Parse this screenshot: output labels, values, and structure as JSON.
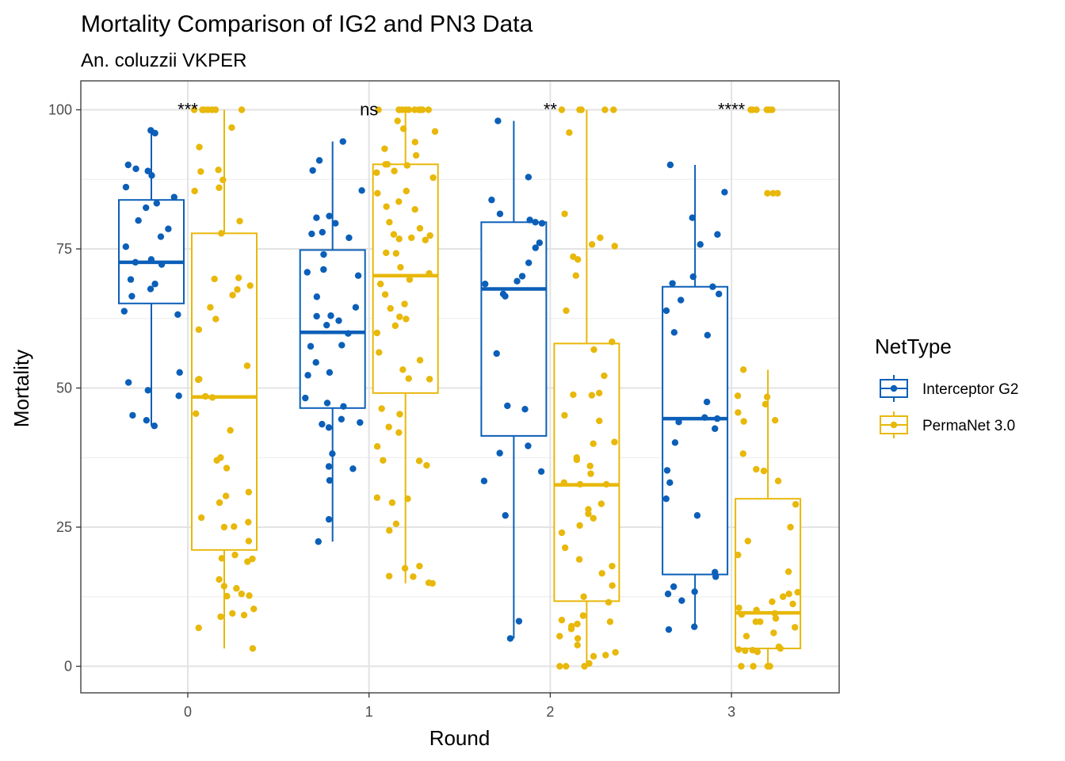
{
  "chart_data": {
    "type": "boxplot",
    "title": "Mortality Comparison of IG2 and PN3 Data",
    "subtitle": "An. coluzzii VKPER",
    "xlabel": "Round",
    "ylabel": "Mortality",
    "categories": [
      "0",
      "1",
      "2",
      "3"
    ],
    "y_ticks": [
      "0",
      "25",
      "50",
      "75",
      "100"
    ],
    "ylim": [
      -5,
      105
    ],
    "grid": true,
    "legend": {
      "title": "NetType",
      "position": "right"
    },
    "annotations": [
      "***",
      "ns",
      "**",
      "****"
    ],
    "series": [
      {
        "name": "Interceptor G2",
        "color": "#0B5FB8",
        "boxes": [
          {
            "min": 43.2,
            "q1": 65.2,
            "median": 72.6,
            "q3": 83.8,
            "max": 96.3
          },
          {
            "min": 22.4,
            "q1": 46.4,
            "median": 60.0,
            "q3": 74.8,
            "max": 94.3
          },
          {
            "min": 5.0,
            "q1": 41.4,
            "median": 67.8,
            "q3": 79.8,
            "max": 98.0
          },
          {
            "min": 6.6,
            "q1": 16.5,
            "median": 44.5,
            "q3": 68.2,
            "max": 90.1
          }
        ],
        "points": [
          [
            96.3,
            95.8,
            90.1,
            89.4,
            89.0,
            88.2,
            86.1,
            84.3,
            83.2,
            82.4,
            80.1,
            78.6,
            77.2,
            75.4,
            73.1,
            72.6,
            72.2,
            69.5,
            68.7,
            67.8,
            66.5,
            63.8,
            63.2,
            52.8,
            51.0,
            49.6,
            48.6,
            45.1,
            44.2,
            43.2
          ],
          [
            94.3,
            90.9,
            89.1,
            85.5,
            80.9,
            80.6,
            79.6,
            78.0,
            77.7,
            77.0,
            74.0,
            71.3,
            70.8,
            70.2,
            66.4,
            64.5,
            63.0,
            62.9,
            62.1,
            61.3,
            59.8,
            57.7,
            57.5,
            54.6,
            52.8,
            52.3,
            48.2,
            47.3,
            46.7,
            44.4,
            43.8,
            43.5,
            42.9,
            38.2,
            35.9,
            35.5,
            33.4,
            26.4,
            22.4
          ],
          [
            98.0,
            87.9,
            83.8,
            81.3,
            80.2,
            79.8,
            79.6,
            76.1,
            75.2,
            72.5,
            70.1,
            69.2,
            68.7,
            66.9,
            66.5,
            56.2,
            46.8,
            46.2,
            39.6,
            38.3,
            35.0,
            33.3,
            27.1,
            8.1,
            5.0
          ],
          [
            90.1,
            85.2,
            80.6,
            77.6,
            75.8,
            70.0,
            68.8,
            68.2,
            66.9,
            65.8,
            63.9,
            60.0,
            59.5,
            47.5,
            44.7,
            44.5,
            43.9,
            42.7,
            40.2,
            35.2,
            33.0,
            30.1,
            27.1,
            16.9,
            16.1,
            14.3,
            13.4,
            13.0,
            11.8,
            7.1,
            6.6
          ]
        ]
      },
      {
        "name": "PermaNet 3.0",
        "color": "#E8B80A",
        "boxes": [
          {
            "min": 3.2,
            "q1": 20.9,
            "median": 48.4,
            "q3": 77.8,
            "max": 100
          },
          {
            "min": 14.9,
            "q1": 49.1,
            "median": 70.2,
            "q3": 90.2,
            "max": 100
          },
          {
            "min": 0,
            "q1": 11.7,
            "median": 32.6,
            "q3": 58.0,
            "max": 100
          },
          {
            "min": 0,
            "q1": 3.2,
            "median": 9.6,
            "q3": 30.1,
            "max": 53.3
          }
        ],
        "points": [
          [
            100,
            100,
            100,
            100,
            100,
            100,
            100,
            96.8,
            93.3,
            89.2,
            88.9,
            87.4,
            86.0,
            85.4,
            80.0,
            77.8,
            69.8,
            69.6,
            68.4,
            67.7,
            66.7,
            64.5,
            62.4,
            60.5,
            54.0,
            51.6,
            51.5,
            48.5,
            48.3,
            45.4,
            42.4,
            37.5,
            37.0,
            35.6,
            31.3,
            30.6,
            29.4,
            26.7,
            25.9,
            25.1,
            25.0,
            22.5,
            20.0,
            19.4,
            19.3,
            18.8,
            15.6,
            14.4,
            14.0,
            13.0,
            12.7,
            12.6,
            10.3,
            9.5,
            9.2,
            8.9,
            6.9,
            3.2
          ],
          [
            100,
            100,
            100,
            100,
            100,
            100,
            100,
            100,
            100,
            100,
            98.0,
            96.6,
            96.1,
            94.2,
            93.0,
            91.8,
            90.2,
            90.2,
            90.0,
            89.0,
            88.7,
            87.8,
            85.4,
            85.0,
            83.5,
            82.6,
            82.1,
            79.8,
            78.7,
            77.6,
            77.4,
            77.0,
            76.8,
            76.6,
            74.3,
            74.2,
            71.7,
            70.6,
            69.5,
            68.7,
            66.8,
            65.1,
            64.3,
            62.8,
            62.4,
            61.2,
            59.9,
            56.4,
            55.0,
            53.3,
            51.7,
            51.6,
            46.3,
            45.3,
            43.0,
            42.0,
            39.5,
            37.0,
            36.9,
            36.1,
            30.3,
            30.1,
            29.4,
            25.6,
            24.4,
            18.0,
            17.6,
            16.2,
            16.1,
            15.0,
            14.9
          ],
          [
            100,
            100,
            100,
            100,
            100,
            95.9,
            81.3,
            77.0,
            75.8,
            75.5,
            73.6,
            73.1,
            70.2,
            63.9,
            58.3,
            56.9,
            52.2,
            49.1,
            48.8,
            48.7,
            45.1,
            44.1,
            40.3,
            40.0,
            37.5,
            37.1,
            36.0,
            34.6,
            33.0,
            32.7,
            32.7,
            29.2,
            28.2,
            27.4,
            26.6,
            25.3,
            24.0,
            21.3,
            19.2,
            18.0,
            16.7,
            14.5,
            12.5,
            11.5,
            9.1,
            8.3,
            8.0,
            7.6,
            7.2,
            6.7,
            5.4,
            5.0,
            3.8,
            2.5,
            2.0,
            1.8,
            0.5,
            0,
            0,
            0
          ],
          [
            100,
            100,
            100,
            100,
            100,
            100,
            85.0,
            85.0,
            85.0,
            53.3,
            48.6,
            48.4,
            47.1,
            45.6,
            44.2,
            44.0,
            38.2,
            35.4,
            35.1,
            33.3,
            29.1,
            25.0,
            22.5,
            20.0,
            17.0,
            13.3,
            13.0,
            12.5,
            11.6,
            11.2,
            10.5,
            10.1,
            9.5,
            9.3,
            8.6,
            8.0,
            8.0,
            7.0,
            6.0,
            5.4,
            3.5,
            3.2,
            3.0,
            2.9,
            2.8,
            2.6,
            0,
            0,
            0,
            0,
            0
          ]
        ]
      }
    ]
  }
}
